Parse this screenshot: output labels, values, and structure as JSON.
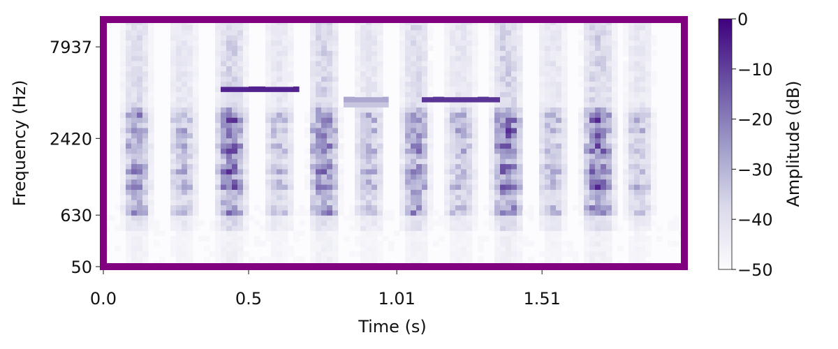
{
  "colors": {
    "frame": "#800080",
    "cmap_high": "#3f007d",
    "cmap_low": "#fcfbfd",
    "text": "#111111"
  },
  "chart_data": {
    "type": "heatmap",
    "title": "",
    "xlabel": "Time (s)",
    "ylabel": "Frequency (Hz)",
    "colorbar_label": "Amplitude (dB)",
    "xlim": [
      0.0,
      2.0
    ],
    "x_ticks": [
      {
        "value": 0.0,
        "label": "0.0"
      },
      {
        "value": 0.5,
        "label": "0.5"
      },
      {
        "value": 1.01,
        "label": "1.01"
      },
      {
        "value": 1.51,
        "label": "1.51"
      }
    ],
    "ylim": [
      50,
      11000
    ],
    "y_scale": "mel-like",
    "y_ticks": [
      {
        "value": 50,
        "label": "50"
      },
      {
        "value": 630,
        "label": "630"
      },
      {
        "value": 2420,
        "label": "2420"
      },
      {
        "value": 7937,
        "label": "7937"
      }
    ],
    "clim": [
      -50,
      0
    ],
    "colorbar_ticks": [
      {
        "value": 0,
        "label": "0"
      },
      {
        "value": -10,
        "label": "−10"
      },
      {
        "value": -20,
        "label": "−20"
      },
      {
        "value": -30,
        "label": "−30"
      },
      {
        "value": -40,
        "label": "−40"
      },
      {
        "value": -50,
        "label": "−50"
      }
    ],
    "colormap": "Purples",
    "syllables": [
      {
        "t0": 0.06,
        "t1": 0.17,
        "strength": 0.75
      },
      {
        "t0": 0.22,
        "t1": 0.33,
        "strength": 0.55
      },
      {
        "t0": 0.38,
        "t1": 0.5,
        "strength": 0.9
      },
      {
        "t0": 0.55,
        "t1": 0.66,
        "strength": 0.5
      },
      {
        "t0": 0.7,
        "t1": 0.82,
        "strength": 0.85
      },
      {
        "t0": 0.86,
        "t1": 0.97,
        "strength": 0.55
      },
      {
        "t0": 1.02,
        "t1": 1.13,
        "strength": 0.75
      },
      {
        "t0": 1.17,
        "t1": 1.29,
        "strength": 0.55
      },
      {
        "t0": 1.33,
        "t1": 1.45,
        "strength": 0.9
      },
      {
        "t0": 1.49,
        "t1": 1.6,
        "strength": 0.55
      },
      {
        "t0": 1.64,
        "t1": 1.77,
        "strength": 0.9
      },
      {
        "t0": 1.79,
        "t1": 1.9,
        "strength": 0.5
      }
    ],
    "tones": [
      {
        "t0": 0.41,
        "t1": 0.67,
        "freq_hz": 4700,
        "db": -5
      },
      {
        "t0": 0.82,
        "t1": 0.99,
        "freq_hz": 4000,
        "db": -8
      },
      {
        "t0": 1.09,
        "t1": 1.37,
        "freq_hz": 4100,
        "db": -5
      }
    ]
  }
}
